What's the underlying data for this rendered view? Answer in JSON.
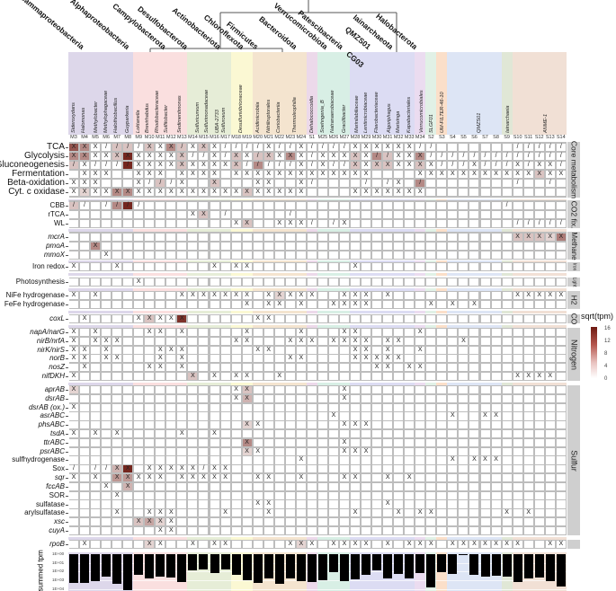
{
  "clades": [
    {
      "name": "Gammaproteobacteria",
      "from": 0,
      "to": 5,
      "color": "#ddd7ea"
    },
    {
      "name": "Alphaproteobacteria",
      "from": 6,
      "to": 10,
      "color": "#fadfdf"
    },
    {
      "name": "Campylobacterota",
      "from": 11,
      "to": 14,
      "color": "#e6edd7"
    },
    {
      "name": "Desulfobacterota",
      "from": 15,
      "to": 16,
      "color": "#fbf8d3"
    },
    {
      "name": "Actinobacteriota",
      "from": 17,
      "to": 21,
      "color": "#f4e4cf"
    },
    {
      "name": "Chloroflexota",
      "from": 22,
      "to": 22,
      "color": "#ecd9ea"
    },
    {
      "name": "Firmicutes",
      "from": 23,
      "to": 25,
      "color": "#d8efe5"
    },
    {
      "name": "Bacteroidota",
      "from": 26,
      "to": 31,
      "color": "#dcdcf3"
    },
    {
      "name": "Verrucomicrobiota",
      "from": 32,
      "to": 32,
      "color": "#ebdcf0"
    },
    {
      "name": "Patescibacteria",
      "from": 33,
      "to": 33,
      "color": "#e1f1e6"
    },
    {
      "name": "CG03",
      "from": 34,
      "to": 34,
      "color": "#fbdfc9"
    },
    {
      "name": "QMZS01",
      "from": 35,
      "to": 39,
      "color": "#dde5f5"
    },
    {
      "name": "Iainarchaeota",
      "from": 40,
      "to": 40,
      "color": "#e0e7d6"
    },
    {
      "name": "Halobacterota",
      "from": 41,
      "to": 45,
      "color": "#f1e0d5"
    }
  ],
  "leaves": [
    "Sideroxydans",
    "Halomonas",
    "Methylobacter",
    "Methylophagaceae",
    "Halothiobacillus",
    "Guyparkeria",
    "Rhodobacteraceae",
    "Loktanella",
    "Brevirhabdus",
    "Sulfitobacter",
    "Sedimentimonas",
    "Sulfurimonadaceae",
    "Sulfuricurvum",
    "UBA-2733",
    "Sulfurovum",
    "Desulfurivibrionaceae",
    "Acidimicrobiia",
    "Nitriliruptorales",
    "Coriobacteriia",
    "Thermoleophilia",
    "Dehalococcoidia",
    "Soehngenia_B",
    "Natranaerobiaceae",
    "Gracilibacter",
    "Marinilabiliaceae",
    "Lentimicrobiaceae",
    "Flavobacteriaceae",
    "Algoriphagus",
    "Marixinga",
    "Kapabacteriales",
    "Verrucomicrobiales",
    "SLGF01",
    "UM-FILTER-46-10",
    "QMZS01",
    "Iainarchaeia",
    "ANME-1"
  ],
  "columns": [
    "M3",
    "M4",
    "M5",
    "M6",
    "M7",
    "M8",
    "M9",
    "M10",
    "M11",
    "M12",
    "M13",
    "M14",
    "M15",
    "M16",
    "M17",
    "M18",
    "M19",
    "M20",
    "M21",
    "M22",
    "M23",
    "M24",
    "S1",
    "M25",
    "M26",
    "M27",
    "M28",
    "M29",
    "M30",
    "M31",
    "M32",
    "M33",
    "M34",
    "S2",
    "S3",
    "S4",
    "S5",
    "S6",
    "S7",
    "S8",
    "S9",
    "S10",
    "S11",
    "S12",
    "S13",
    "S14"
  ],
  "sections": [
    {
      "label": "Core metabolism",
      "rows": [
        {
          "label": "TCA",
          "marks": "XXX////XXX/XXX////X//X////XXXXXX//......./////",
          "v": {
            "0": 11,
            "1": 7,
            "4": 3,
            "5": 3,
            "7": 3,
            "9": 7,
            "10": 3,
            "12": 3
          }
        },
        {
          "label": "Glycolysis",
          "marks": "XXXXXXXXXXX//X/XX/XXXX/XXXXX//XXX/////////////",
          "v": {
            "0": 7,
            "1": 7,
            "4": 3,
            "5": 15,
            "10": 3,
            "15": 3,
            "17": 3,
            "18": 3,
            "20": 7,
            "26": 3,
            "28": 7,
            "29": 3,
            "32": 7
          }
        },
        {
          "label": "Gluconeogenesis",
          "marks": "/X////XXXXXXXXXX/////X/X//XXXXXXXX///X///X/XX/",
          "v": {
            "0": 3,
            "5": 15,
            "10": 3,
            "15": 3,
            "17": 7,
            "26": 3,
            "28": 3,
            "29": 3,
            "32": 3
          }
        },
        {
          "label": "Fermentation",
          "marks": ".XXX..XXX.XXXX.XXXXXXXXXXXXX....XXXXXXXXXXXXXX",
          "v": {
            "43": 3
          }
        },
        {
          "label": "Beta-oxidation",
          "marks": "XXX...X///X..X...XX..X/...././X./......../../.",
          "v": {
            "8": 3,
            "13": 3,
            "32": 7
          }
        },
        {
          "label": "Cyt. c oxidase",
          "marks": "XXXXXXXXXXXXXXXXXXXXXX....XXXXXXX.............",
          "v": {
            "1": 2,
            "4": 7,
            "5": 7,
            "16": 3
          }
        }
      ]
    },
    {
      "label": "CO2 fix.",
      "rows": [
        {
          "label": "CBB",
          "marks": "//.////................................./.....",
          "v": {
            "0": 3,
            "4": 7,
            "5": 15
          }
        },
        {
          "label": "rTCA",
          "x": [
            11,
            12
          ],
          "s": [
            14,
            20
          ],
          "v": {
            "12": 3
          }
        },
        {
          "label": "WL",
          "x": [
            15,
            16,
            19,
            20,
            21,
            25
          ],
          "s": [
            22,
            24,
            41,
            42,
            43,
            44,
            45
          ],
          "v": {
            "16": 3
          }
        }
      ]
    },
    {
      "label": "Methane",
      "rows": [
        {
          "label": "mcrA",
          "italic": true,
          "x": [
            41,
            42,
            43,
            44,
            45
          ],
          "v": {
            "41": 3,
            "42": 3,
            "43": 3,
            "44": 2,
            "45": 8
          }
        },
        {
          "label": "pmoA",
          "italic": true,
          "x": [
            2
          ],
          "v": {
            "2": 7
          }
        },
        {
          "label": "mmoX",
          "italic": true,
          "x": [
            3
          ]
        }
      ]
    },
    {
      "label": "Iron",
      "rows": [
        {
          "label": "Iron redox",
          "x": [
            0,
            4,
            13,
            15,
            16,
            26
          ]
        }
      ]
    },
    {
      "label": "Light",
      "rows": [
        {
          "label": "Photosynthesis",
          "x": [
            6
          ]
        }
      ]
    },
    {
      "label": "H2",
      "rows": [
        {
          "label": "NiFe hydrogenase",
          "x": [
            0,
            2,
            10,
            11,
            12,
            13,
            14,
            15,
            16,
            18,
            19,
            20,
            21,
            22,
            25,
            26,
            27,
            29,
            41,
            42,
            43,
            44,
            45
          ],
          "v": {
            "19": 2
          }
        },
        {
          "label": "FeFe hydrogenase",
          "x": [
            16,
            18,
            19,
            21,
            24,
            25,
            26,
            27,
            33,
            35,
            37
          ]
        }
      ]
    },
    {
      "label": "CO",
      "rows": [
        {
          "label": "coxL",
          "italic": true,
          "x": [
            1,
            6,
            7,
            8,
            9,
            10,
            17,
            18
          ],
          "v": {
            "7": 3,
            "10": 14
          }
        }
      ]
    },
    {
      "label": "Nitrogen",
      "rows": [
        {
          "label": "napA/narG",
          "italic": true,
          "x": [
            0,
            2,
            7,
            8,
            10,
            16,
            21,
            25,
            26,
            32
          ]
        },
        {
          "label": "nirB/nrfA",
          "italic": true,
          "x": [
            0,
            2,
            3,
            4,
            15,
            16,
            20,
            21,
            22,
            24,
            25,
            26,
            27,
            29,
            30,
            36
          ]
        },
        {
          "label": "nirK/nirS",
          "italic": true,
          "x": [
            0,
            1,
            3,
            8,
            9,
            10,
            17,
            18,
            26,
            27,
            29,
            32
          ]
        },
        {
          "label": "norB",
          "italic": true,
          "x": [
            0,
            1,
            3,
            4,
            8,
            10,
            20,
            21,
            26,
            27,
            28,
            29,
            30
          ]
        },
        {
          "label": "nosZ",
          "italic": true,
          "x": [
            1,
            7,
            8,
            10,
            28,
            29,
            31,
            32
          ]
        },
        {
          "label": "nifDKH",
          "italic": true,
          "x": [
            0,
            11,
            13,
            15,
            16,
            19,
            41,
            42,
            43,
            44
          ],
          "v": {
            "11": 3
          }
        }
      ]
    },
    {
      "label": "Sulfur",
      "rows": [
        {
          "label": "aprAB",
          "italic": true,
          "x": [
            0,
            15,
            16,
            25
          ],
          "v": {
            "0": 2,
            "16": 3
          }
        },
        {
          "label": "dsrAB",
          "italic": true,
          "x": [
            15,
            16,
            25
          ],
          "v": {
            "16": 4
          }
        },
        {
          "label": "dsrAB (ox.)",
          "italic": true,
          "x": [
            0
          ]
        },
        {
          "label": "asrABC",
          "italic": true,
          "x": [
            24,
            35,
            38,
            39
          ]
        },
        {
          "label": "phsABC",
          "italic": true,
          "x": [
            16,
            17,
            25,
            26,
            27
          ],
          "v": {
            "16": 2
          }
        },
        {
          "label": "tsdA",
          "italic": true,
          "x": [
            0,
            2,
            4,
            10,
            13
          ]
        },
        {
          "label": "ttrABC",
          "italic": true,
          "x": [
            16,
            25
          ],
          "v": {
            "16": 7
          }
        },
        {
          "label": "psrABC",
          "italic": true,
          "x": [
            16,
            17,
            25,
            26,
            27
          ],
          "v": {
            "16": 2
          }
        },
        {
          "label": "sulfhydrogenase",
          "x": [
            21,
            35,
            37,
            38,
            39
          ]
        },
        {
          "label": "Sox",
          "x": [
            4,
            5,
            7,
            8,
            9,
            10,
            11,
            13,
            14
          ],
          "s": [
            0,
            2,
            3,
            12
          ],
          "v": {
            "4": 4,
            "5": 15
          }
        },
        {
          "label": "sqr",
          "italic": true,
          "x": [
            0,
            2,
            4,
            5,
            6,
            7,
            8,
            10,
            11,
            12,
            13,
            14,
            17,
            18,
            21,
            25,
            26,
            29,
            31
          ],
          "v": {
            "4": 6,
            "5": 6
          }
        },
        {
          "label": "fccAB",
          "italic": true,
          "x": [
            3,
            5
          ],
          "v": {
            "5": 4
          }
        },
        {
          "label": "SOR",
          "x": [
            4
          ]
        },
        {
          "label": "sulfatase",
          "x": [
            17,
            18,
            29
          ]
        },
        {
          "label": "arylsulfatase",
          "x": [
            4,
            7,
            8,
            9,
            14,
            18,
            26,
            30,
            32,
            33,
            40,
            42
          ]
        },
        {
          "label": "xsc",
          "italic": true,
          "x": [
            6,
            7,
            8,
            9
          ],
          "v": {
            "6": 3,
            "7": 5,
            "8": 2
          }
        },
        {
          "label": "cuyA",
          "italic": true,
          "x": [
            8,
            9
          ]
        }
      ]
    },
    {
      "label": "",
      "rows": [
        {
          "label": "rpoB",
          "italic": true,
          "x": [
            1,
            7,
            8,
            11,
            13,
            14,
            20,
            21,
            22,
            24,
            25,
            26,
            27,
            29,
            31,
            32,
            33,
            35,
            36,
            37,
            38,
            39,
            40,
            41,
            44,
            45
          ],
          "v": {
            "7": 2,
            "21": 2
          }
        }
      ]
    }
  ],
  "summed": {
    "ylabel": "summed tpm",
    "ticks": [
      "1E+00",
      "1E+01",
      "1E+02",
      "1E+03",
      "1E+04"
    ],
    "log10_tpm": [
      3.25,
      3.3,
      3.1,
      2.55,
      3.4,
      4.07,
      2.35,
      2.75,
      2.6,
      2.7,
      3.15,
      1.9,
      1.75,
      2.2,
      1.7,
      2.4,
      3.0,
      3.3,
      2.8,
      3.4,
      2.8,
      3.1,
      3.2,
      3.0,
      2.1,
      3.1,
      2.9,
      2.35,
      1.9,
      2.75,
      2.25,
      2.75,
      2.2,
      3.85,
      2.1,
      2.3,
      0.05,
      2.4,
      2.55,
      2.45,
      2.55,
      3.15,
      2.8,
      2.7,
      3.05,
      3.65
    ]
  },
  "legend": {
    "title": "sqrt(tpm)",
    "ticks": [
      "16",
      "12",
      "8",
      "4",
      "0"
    ],
    "max": 16,
    "low_color": "#ffffff",
    "high_color": "#6e1a12"
  },
  "mark_x": "X",
  "mark_slash": "/"
}
